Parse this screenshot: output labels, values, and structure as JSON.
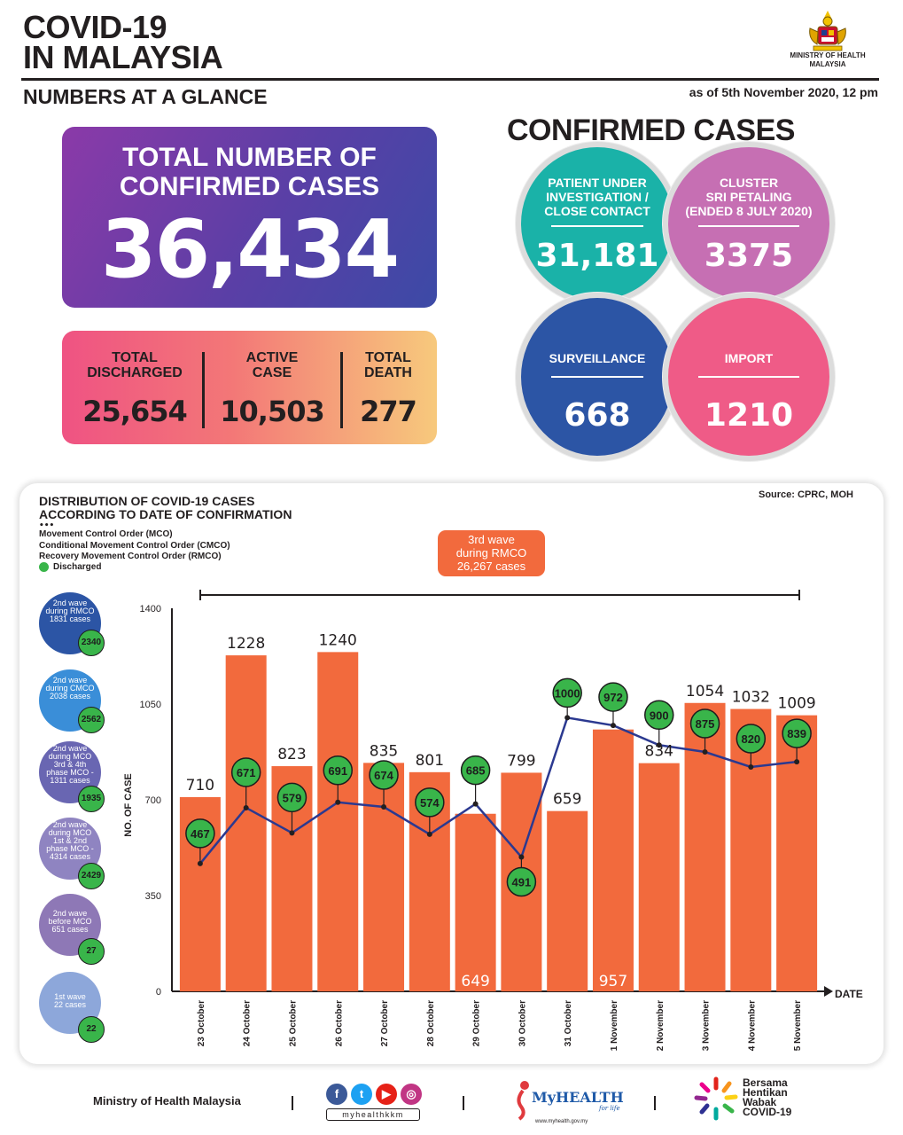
{
  "header": {
    "title_line1": "COVID-19",
    "title_line2": "IN MALAYSIA",
    "subtitle": "NUMBERS AT A GLANCE",
    "as_of": "as of 5th November 2020, 12 pm",
    "ministry_line1": "MINISTRY OF HEALTH",
    "ministry_line2": "MALAYSIA"
  },
  "total": {
    "label_line1": "TOTAL NUMBER OF",
    "label_line2": "CONFIRMED CASES",
    "value": "36,434"
  },
  "stats": [
    {
      "label_line1": "TOTAL",
      "label_line2": "DISCHARGED",
      "value": "25,654"
    },
    {
      "label_line1": "ACTIVE",
      "label_line2": "CASE",
      "value": "10,503"
    },
    {
      "label_line1": "TOTAL",
      "label_line2": "DEATH",
      "value": "277"
    }
  ],
  "confirmed": {
    "title": "CONFIRMED CASES",
    "circles": [
      {
        "l1": "PATIENT UNDER",
        "l2": "INVESTIGATION /",
        "l3": "CLOSE CONTACT",
        "value": "31,181",
        "color": "#1ab2a8"
      },
      {
        "l1": "CLUSTER",
        "l2": "SRI PETALING",
        "l3": "(ENDED 8 JULY 2020)",
        "value": "3375",
        "color": "#c66fb3"
      },
      {
        "l1": "SURVEILLANCE",
        "value": "668",
        "color": "#2c55a5"
      },
      {
        "l1": "IMPORT",
        "value": "1210",
        "color": "#ef5b87"
      }
    ]
  },
  "chart_panel": {
    "title_line1": "DISTRIBUTION OF COVID-19 CASES",
    "title_line2": "ACCORDING TO DATE OF CONFIRMATION",
    "source": "Source: CPRC, MOH",
    "legend": [
      "Movement Control Order (MCO)",
      "Conditional Movement Control Order (CMCO)",
      "Recovery Movement Control Order (RMCO)",
      "Discharged"
    ],
    "wave_box": {
      "l1": "3rd wave",
      "l2": "during RMCO",
      "l3": "26,267 cases"
    },
    "waves": [
      {
        "l1": "2nd wave",
        "l2": "during RMCO",
        "l3": "1831 cases",
        "badge": "2340",
        "color": "#2c55a5"
      },
      {
        "l1": "2nd wave",
        "l2": "during CMCO",
        "l3": "2038 cases",
        "badge": "2562",
        "color": "#3a8ed8"
      },
      {
        "l1": "2nd wave",
        "l2": "during MCO",
        "l3": "3rd & 4th",
        "l4": "phase MCO -",
        "l5": "1311 cases",
        "badge": "1935",
        "color": "#6966b2"
      },
      {
        "l1": "2nd wave",
        "l2": "during MCO",
        "l3": "1st & 2nd",
        "l4": "phase MCO -",
        "l5": "4314 cases",
        "badge": "2429",
        "color": "#8f84c1"
      },
      {
        "l1": "2nd wave",
        "l2": "before MCO",
        "l3": "651 cases",
        "badge": "27",
        "color": "#8e78b6"
      },
      {
        "l1": "1st wave",
        "l2": "22 cases",
        "badge": "22",
        "color": "#8da7da"
      }
    ]
  },
  "chart_data": {
    "type": "bar",
    "ylabel": "NO. OF CASE",
    "xlabel": "DATE",
    "ylim": [
      0,
      1400
    ],
    "yticks": [
      0,
      350,
      700,
      1050,
      1400
    ],
    "categories": [
      "23 October",
      "24 October",
      "25 October",
      "26 October",
      "27 October",
      "28 October",
      "29 October",
      "30 October",
      "31 October",
      "1 November",
      "2 November",
      "3 November",
      "4 November",
      "5 November"
    ],
    "series": [
      {
        "values": [
          710,
          1228,
          823,
          1240,
          835,
          801,
          649,
          799,
          659,
          957,
          834,
          1054,
          1032,
          1009
        ],
        "type": "bar",
        "color": "#f26a3d"
      },
      {
        "name": "Discharged",
        "values": [
          467,
          671,
          579,
          691,
          674,
          574,
          685,
          491,
          1000,
          972,
          900,
          875,
          820,
          839
        ],
        "type": "line",
        "color": "#2b3990"
      }
    ],
    "grid": false
  },
  "footer": {
    "ministry": "Ministry of Health Malaysia",
    "handle": "myhealthkkm",
    "myhealth": "MyHEALTH",
    "myhealth_sub": "for life",
    "myhealth_url": "www.myhealth.gov.my",
    "bhw_l1": "Bersama",
    "bhw_l2": "Hentikan",
    "bhw_l3": "Wabak",
    "bhw_l4": "COVID-19"
  }
}
